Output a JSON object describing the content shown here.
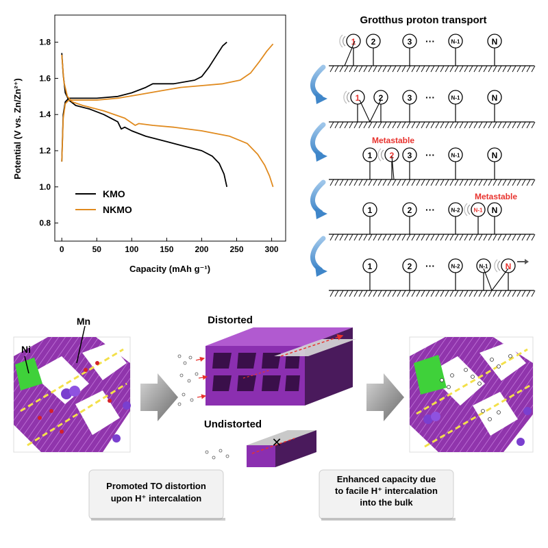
{
  "chart_data": {
    "type": "line",
    "xlabel": "Capacity (mAh g⁻¹)",
    "ylabel": "Potential (V vs. Zn/Zn²⁺)",
    "xlim": [
      -10,
      320
    ],
    "ylim": [
      0.7,
      1.95
    ],
    "xticks": [
      "0",
      "50",
      "100",
      "150",
      "200",
      "250",
      "300"
    ],
    "yticks": [
      "0.8",
      "1.0",
      "1.2",
      "1.4",
      "1.6",
      "1.8"
    ],
    "legend_position": "bottom-left",
    "series": [
      {
        "name": "KMO",
        "color": "#000000",
        "segments": [
          {
            "label": "discharge",
            "x": [
              0,
              2,
              5,
              10,
              20,
              40,
              60,
              80,
              85,
              90,
              100,
              120,
              150,
              180,
              200,
              215,
              225,
              232,
              236
            ],
            "y": [
              1.74,
              1.62,
              1.52,
              1.48,
              1.45,
              1.43,
              1.4,
              1.36,
              1.32,
              1.33,
              1.31,
              1.28,
              1.25,
              1.22,
              1.2,
              1.17,
              1.13,
              1.07,
              1.0
            ]
          },
          {
            "label": "charge",
            "x": [
              0,
              2,
              5,
              10,
              20,
              50,
              80,
              100,
              120,
              130,
              160,
              190,
              200,
              210,
              220,
              230,
              236
            ],
            "y": [
              1.14,
              1.4,
              1.47,
              1.49,
              1.49,
              1.49,
              1.5,
              1.52,
              1.55,
              1.57,
              1.57,
              1.59,
              1.61,
              1.66,
              1.72,
              1.78,
              1.8
            ]
          }
        ]
      },
      {
        "name": "NKMO",
        "color": "#e08a1e",
        "segments": [
          {
            "label": "discharge",
            "x": [
              0,
              3,
              8,
              15,
              30,
              60,
              90,
              105,
              110,
              130,
              160,
              200,
              240,
              265,
              280,
              290,
              297,
              302
            ],
            "y": [
              1.73,
              1.58,
              1.5,
              1.47,
              1.45,
              1.42,
              1.38,
              1.34,
              1.35,
              1.34,
              1.33,
              1.31,
              1.28,
              1.24,
              1.18,
              1.12,
              1.06,
              1.0
            ]
          },
          {
            "label": "charge",
            "x": [
              0,
              2,
              5,
              10,
              20,
              50,
              80,
              110,
              140,
              170,
              200,
              230,
              255,
              270,
              282,
              293,
              302
            ],
            "y": [
              1.14,
              1.38,
              1.46,
              1.48,
              1.48,
              1.48,
              1.49,
              1.51,
              1.53,
              1.55,
              1.56,
              1.57,
              1.59,
              1.63,
              1.69,
              1.75,
              1.79
            ]
          }
        ]
      }
    ]
  },
  "grotthuss": {
    "title": "Grotthus proton transport",
    "metastable_label": "Metastable",
    "dots": "···"
  },
  "bottom": {
    "mn_label": "Mn",
    "ni_label": "Ni",
    "distorted_label": "Distorted",
    "undistorted_label": "Undistorted",
    "caption_left_line1": "Promoted TO distortion",
    "caption_left_line2": "upon H⁺ intercalation",
    "caption_right_line1": "Enhanced capacity due",
    "caption_right_line2": "to facile H⁺ intercalation",
    "caption_right_line3": "into the bulk",
    "block_symbol": "✕"
  }
}
